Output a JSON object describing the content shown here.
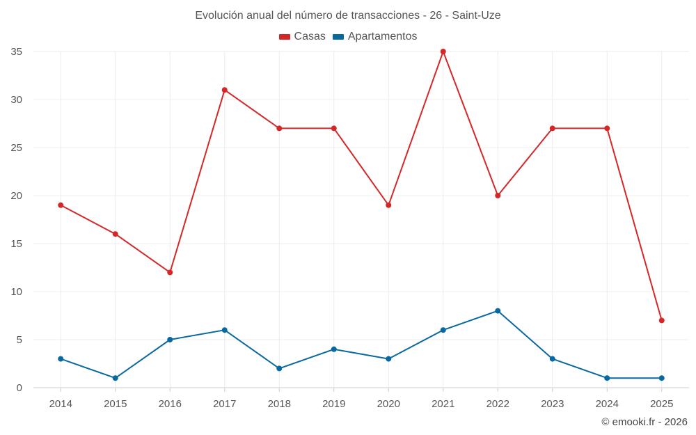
{
  "chart_data": {
    "type": "line",
    "title": "Evolución anual del número de transacciones - 26 - Saint-Uze",
    "categories": [
      "2014",
      "2015",
      "2016",
      "2017",
      "2018",
      "2019",
      "2020",
      "2021",
      "2022",
      "2023",
      "2024",
      "2025"
    ],
    "series": [
      {
        "name": "Casas",
        "color": "#d62728",
        "values": [
          19,
          16,
          12,
          31,
          27,
          27,
          19,
          35,
          20,
          27,
          27,
          7
        ]
      },
      {
        "name": "Apartamentos",
        "color": "#0868a0",
        "values": [
          3,
          1,
          5,
          6,
          2,
          4,
          3,
          6,
          8,
          3,
          1,
          1
        ]
      }
    ],
    "ylim": [
      0,
      35
    ],
    "yticks": [
      0,
      5,
      10,
      15,
      20,
      25,
      30,
      35
    ],
    "grid": true,
    "legend_position": "top-center",
    "xlabel": "",
    "ylabel": ""
  },
  "credit": "© emooki.fr - 2026"
}
